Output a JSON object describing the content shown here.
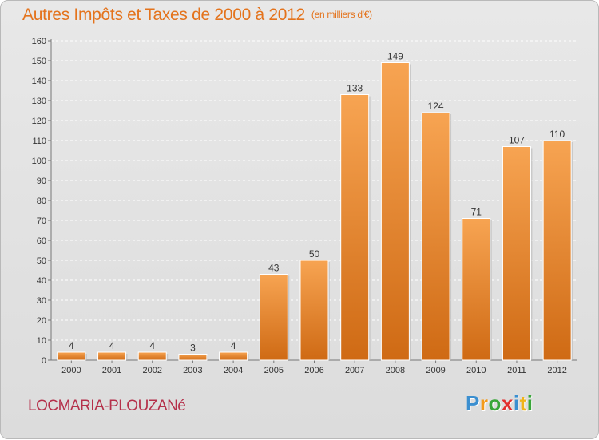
{
  "header": {
    "title": "Autres Impôts et Taxes de 2000 à 2012",
    "unit": "(en milliers d'€)"
  },
  "footer": {
    "location": "LOCMARIA-PLOUZANé",
    "logo_letters": [
      "P",
      "r",
      "o",
      "x",
      "i",
      "t",
      "i"
    ]
  },
  "colors": {
    "bar_light": "#f7a452",
    "bar_dark": "#cf6a14",
    "title": "#e4731c",
    "location": "#b5304a",
    "grid": "#ffffff"
  },
  "chart_data": {
    "type": "bar",
    "title": "Autres Impôts et Taxes de 2000 à 2012",
    "subtitle": "(en milliers d'€)",
    "xlabel": "",
    "ylabel": "",
    "categories": [
      "2000",
      "2001",
      "2002",
      "2003",
      "2004",
      "2005",
      "2006",
      "2007",
      "2008",
      "2009",
      "2010",
      "2011",
      "2012"
    ],
    "values": [
      4,
      4,
      4,
      3,
      4,
      43,
      50,
      133,
      149,
      124,
      71,
      107,
      110
    ],
    "ylim": [
      0,
      160
    ],
    "yticks": [
      0,
      10,
      20,
      30,
      40,
      50,
      60,
      70,
      80,
      90,
      100,
      110,
      120,
      130,
      140,
      150,
      160
    ],
    "grid": "horizontal dashed",
    "legend": "none"
  }
}
